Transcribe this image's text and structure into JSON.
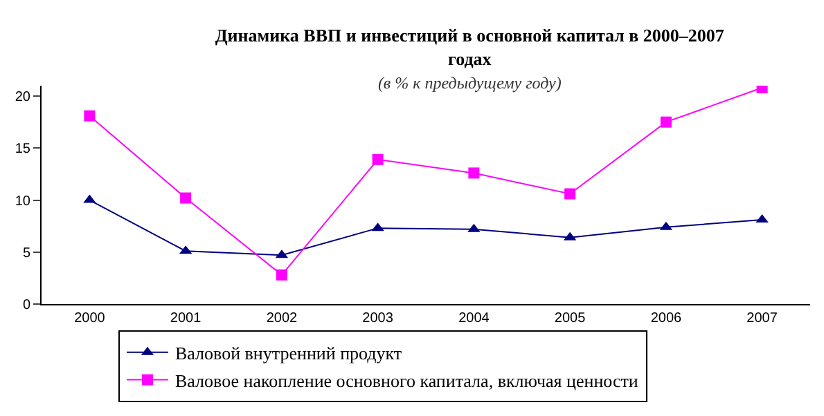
{
  "chart_data": {
    "type": "line",
    "title": "Динамика ВВП и инвестиций в основной капитал в 2000–2007 годах",
    "subtitle": "(в % к предыдущему году)",
    "categories": [
      "2000",
      "2001",
      "2002",
      "2003",
      "2004",
      "2005",
      "2006",
      "2007"
    ],
    "series": [
      {
        "name": "Валовой внутренний продукт",
        "color": "#000080",
        "marker": "triangle",
        "values": [
          10.0,
          5.1,
          4.7,
          7.3,
          7.2,
          6.4,
          7.4,
          8.1
        ]
      },
      {
        "name": "Валовое накопление основного капитала, включая ценности",
        "color": "#ff00ff",
        "marker": "square",
        "values": [
          18.1,
          10.2,
          2.8,
          13.9,
          12.6,
          10.6,
          17.5,
          20.8
        ]
      }
    ],
    "ylim": [
      0,
      21
    ],
    "yticks": [
      0,
      5,
      10,
      15,
      20
    ],
    "grid": false,
    "legend": "bottom"
  }
}
